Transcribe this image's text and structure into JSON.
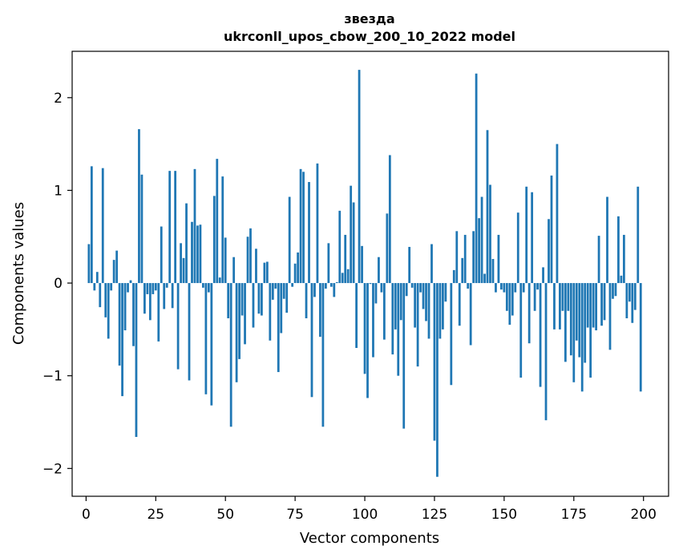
{
  "chart_data": {
    "type": "bar",
    "title": "звезда",
    "subtitle": "ukrconll_upos_cbow_200_10_2022 model",
    "xlabel": "Vector components",
    "ylabel": "Components values",
    "xlim": [
      -5,
      209
    ],
    "ylim": [
      -2.3,
      2.5
    ],
    "xticks": [
      0,
      25,
      50,
      75,
      100,
      125,
      150,
      175,
      200
    ],
    "xtick_labels": [
      "0",
      "25",
      "50",
      "75",
      "100",
      "125",
      "150",
      "175",
      "200"
    ],
    "yticks": [
      -2,
      -1,
      0,
      1,
      2
    ],
    "ytick_labels": [
      "−2",
      "−1",
      "0",
      "1",
      "2"
    ],
    "grid": false,
    "bar_color": "#1f77b4",
    "x": [
      0,
      1,
      2,
      3,
      4,
      5,
      6,
      7,
      8,
      9,
      10,
      11,
      12,
      13,
      14,
      15,
      16,
      17,
      18,
      19,
      20,
      21,
      22,
      23,
      24,
      25,
      26,
      27,
      28,
      29,
      30,
      31,
      32,
      33,
      34,
      35,
      36,
      37,
      38,
      39,
      40,
      41,
      42,
      43,
      44,
      45,
      46,
      47,
      48,
      49,
      50,
      51,
      52,
      53,
      54,
      55,
      56,
      57,
      58,
      59,
      60,
      61,
      62,
      63,
      64,
      65,
      66,
      67,
      68,
      69,
      70,
      71,
      72,
      73,
      74,
      75,
      76,
      77,
      78,
      79,
      80,
      81,
      82,
      83,
      84,
      85,
      86,
      87,
      88,
      89,
      90,
      91,
      92,
      93,
      94,
      95,
      96,
      97,
      98,
      99,
      100,
      101,
      102,
      103,
      104,
      105,
      106,
      107,
      108,
      109,
      110,
      111,
      112,
      113,
      114,
      115,
      116,
      117,
      118,
      119,
      120,
      121,
      122,
      123,
      124,
      125,
      126,
      127,
      128,
      129,
      130,
      131,
      132,
      133,
      134,
      135,
      136,
      137,
      138,
      139,
      140,
      141,
      142,
      143,
      144,
      145,
      146,
      147,
      148,
      149,
      150,
      151,
      152,
      153,
      154,
      155,
      156,
      157,
      158,
      159,
      160,
      161,
      162,
      163,
      164,
      165,
      166,
      167,
      168,
      169,
      170,
      171,
      172,
      173,
      174,
      175,
      176,
      177,
      178,
      179,
      180,
      181,
      182,
      183,
      184,
      185,
      186,
      187,
      188,
      189,
      190,
      191,
      192,
      193,
      194,
      195,
      196,
      197,
      198,
      199
    ],
    "values": [
      0.0,
      0.42,
      1.26,
      -0.08,
      0.12,
      -0.26,
      1.24,
      -0.37,
      -0.6,
      -0.08,
      0.25,
      0.35,
      -0.89,
      -1.22,
      -0.51,
      -0.1,
      0.03,
      -0.68,
      -1.66,
      1.66,
      1.17,
      -0.33,
      -0.12,
      -0.4,
      -0.12,
      -0.08,
      -0.63,
      0.61,
      -0.28,
      -0.05,
      1.21,
      -0.27,
      1.21,
      -0.93,
      0.43,
      0.27,
      0.86,
      -1.05,
      0.66,
      1.23,
      0.62,
      0.63,
      -0.05,
      -1.2,
      -0.1,
      -1.32,
      0.94,
      1.34,
      0.06,
      1.15,
      0.49,
      -0.38,
      -1.55,
      0.28,
      -1.07,
      -0.82,
      -0.35,
      -0.66,
      0.5,
      0.59,
      -0.48,
      0.37,
      -0.33,
      -0.35,
      0.22,
      0.23,
      -0.62,
      -0.18,
      -0.06,
      -0.96,
      -0.54,
      -0.17,
      -0.32,
      0.93,
      -0.04,
      0.21,
      0.33,
      1.23,
      1.2,
      -0.38,
      1.09,
      -1.23,
      -0.15,
      1.29,
      -0.58,
      -1.55,
      -0.06,
      0.43,
      -0.04,
      -0.15,
      0.01,
      0.78,
      0.11,
      0.52,
      0.15,
      1.05,
      0.87,
      -0.7,
      2.3,
      0.4,
      -0.98,
      -1.24,
      -0.01,
      -0.8,
      -0.22,
      0.28,
      -0.1,
      -0.61,
      0.75,
      1.38,
      -0.77,
      -0.5,
      -1.0,
      -0.4,
      -1.57,
      -0.14,
      0.39,
      -0.05,
      -0.48,
      -0.9,
      -0.1,
      -0.28,
      -0.41,
      -0.6,
      0.42,
      -1.7,
      -2.09,
      -0.6,
      -0.5,
      -0.2,
      0.0,
      -1.1,
      0.14,
      0.56,
      -0.46,
      0.27,
      0.52,
      -0.06,
      -0.67,
      0.56,
      2.26,
      0.7,
      0.93,
      0.1,
      1.65,
      1.06,
      0.26,
      -0.1,
      0.52,
      -0.07,
      -0.1,
      -0.3,
      -0.45,
      -0.35,
      -0.1,
      0.76,
      -1.02,
      -0.1,
      1.04,
      -0.65,
      0.98,
      -0.3,
      -0.07,
      -1.12,
      0.17,
      -1.48,
      0.69,
      1.16,
      -0.5,
      1.5,
      -0.5,
      -0.3,
      -0.85,
      -0.3,
      -0.78,
      -1.07,
      -0.62,
      -0.8,
      -1.17,
      -0.86,
      -0.48,
      -1.02,
      -0.48,
      -0.51,
      0.51,
      -0.46,
      -0.4,
      0.93,
      -0.72,
      -0.17,
      -0.14,
      0.72,
      0.08,
      0.52,
      -0.38,
      -0.2,
      -0.43,
      -0.29,
      1.04,
      -1.17
    ]
  }
}
